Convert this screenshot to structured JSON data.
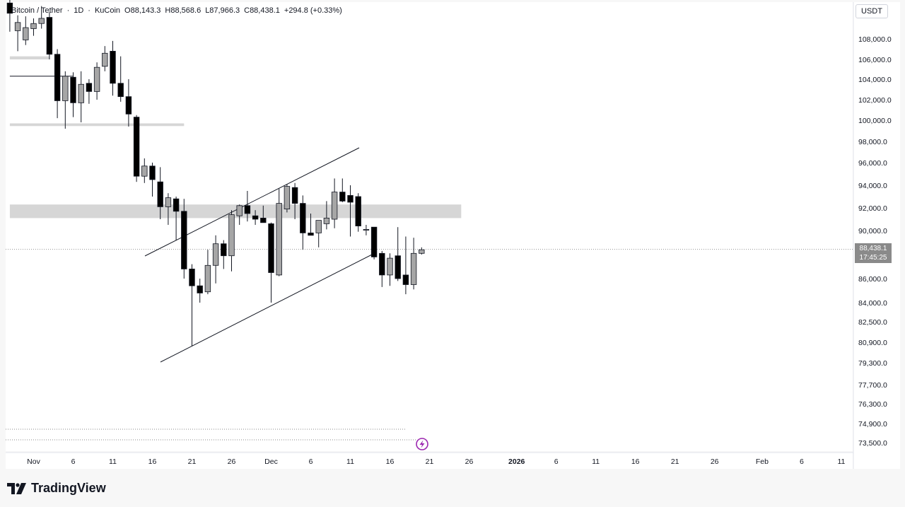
{
  "header": {
    "symbol": "Bitcoin / Tether",
    "interval": "1D",
    "exchange": "KuCoin",
    "open": "O88,143.3",
    "high": "H88,568.6",
    "low": "L87,966.3",
    "close": "C88,438.1",
    "change": "+294.8 (+0.33%)"
  },
  "currency_button": "USDT",
  "brand": "TradingView",
  "current_price": {
    "label": "88,438.1",
    "countdown": "17:45:25"
  },
  "colors": {
    "up": "#a6a6a6",
    "down": "#000000",
    "zone": "#d6d6d6",
    "accent_icon": "#9c27b0"
  },
  "chart_data": {
    "type": "candlestick",
    "y_axis_labels": [
      "108,000.0",
      "106,000.0",
      "104,000.0",
      "102,000.0",
      "100,000.0",
      "98,000.0",
      "96,000.0",
      "94,000.0",
      "92,000.0",
      "90,000.0",
      "86,000.0",
      "84,000.0",
      "82,500.0",
      "80,900.0",
      "79,300.0",
      "77,700.0",
      "76,300.0",
      "74,900.0",
      "73,500.0"
    ],
    "y_axis_values": [
      108000,
      106000,
      104000,
      102000,
      100000,
      98000,
      96000,
      94000,
      92000,
      90000,
      86000,
      84000,
      82500,
      80900,
      79300,
      77700,
      76300,
      74900,
      73500
    ],
    "x_axis_labels": [
      "Nov",
      "6",
      "11",
      "16",
      "21",
      "26",
      "Dec",
      "6",
      "11",
      "16",
      "21",
      "26",
      "2026",
      "6",
      "11",
      "16",
      "21",
      "26",
      "Feb",
      "6",
      "11"
    ],
    "x_axis_days": [
      0,
      5,
      10,
      15,
      20,
      25,
      30,
      35,
      40,
      45,
      50,
      55,
      61,
      66,
      71,
      76,
      81,
      86,
      92,
      97,
      102
    ],
    "candles": [
      {
        "d": -3,
        "o": 111500,
        "h": 111900,
        "l": 108700,
        "c": 110500
      },
      {
        "d": -2,
        "o": 108800,
        "h": 110300,
        "l": 106800,
        "c": 109600
      },
      {
        "d": -1,
        "o": 107900,
        "h": 110200,
        "l": 107400,
        "c": 109100
      },
      {
        "d": 0,
        "o": 109000,
        "h": 110000,
        "l": 108300,
        "c": 109500
      },
      {
        "d": 1,
        "o": 109500,
        "h": 111200,
        "l": 109000,
        "c": 110000
      },
      {
        "d": 2,
        "o": 110100,
        "h": 110600,
        "l": 106000,
        "c": 106500
      },
      {
        "d": 3,
        "o": 106500,
        "h": 107000,
        "l": 100200,
        "c": 101900
      },
      {
        "d": 4,
        "o": 101900,
        "h": 104800,
        "l": 99200,
        "c": 104300
      },
      {
        "d": 5,
        "o": 104200,
        "h": 104700,
        "l": 100300,
        "c": 101700
      },
      {
        "d": 6,
        "o": 101700,
        "h": 104800,
        "l": 99800,
        "c": 103500
      },
      {
        "d": 7,
        "o": 103600,
        "h": 104000,
        "l": 101600,
        "c": 102800
      },
      {
        "d": 8,
        "o": 102800,
        "h": 105700,
        "l": 102000,
        "c": 105200
      },
      {
        "d": 9,
        "o": 105300,
        "h": 107300,
        "l": 104800,
        "c": 106600
      },
      {
        "d": 10,
        "o": 106800,
        "h": 107800,
        "l": 102400,
        "c": 103600
      },
      {
        "d": 11,
        "o": 103600,
        "h": 106300,
        "l": 101800,
        "c": 102300
      },
      {
        "d": 12,
        "o": 102300,
        "h": 104000,
        "l": 99400,
        "c": 100600
      },
      {
        "d": 13,
        "o": 100300,
        "h": 100500,
        "l": 94300,
        "c": 94800
      },
      {
        "d": 14,
        "o": 94800,
        "h": 96400,
        "l": 94200,
        "c": 95700
      },
      {
        "d": 15,
        "o": 95700,
        "h": 96000,
        "l": 93000,
        "c": 94500
      },
      {
        "d": 16,
        "o": 94300,
        "h": 95600,
        "l": 91000,
        "c": 92100
      },
      {
        "d": 17,
        "o": 92100,
        "h": 93300,
        "l": 90500,
        "c": 92900
      },
      {
        "d": 18,
        "o": 92800,
        "h": 93000,
        "l": 89200,
        "c": 91700
      },
      {
        "d": 19,
        "o": 91700,
        "h": 92800,
        "l": 86000,
        "c": 86800
      },
      {
        "d": 20,
        "o": 86800,
        "h": 87200,
        "l": 80600,
        "c": 85400
      },
      {
        "d": 21,
        "o": 85400,
        "h": 86000,
        "l": 84000,
        "c": 84800
      },
      {
        "d": 22,
        "o": 84900,
        "h": 88400,
        "l": 84700,
        "c": 87100
      },
      {
        "d": 23,
        "o": 87100,
        "h": 89600,
        "l": 85600,
        "c": 88900
      },
      {
        "d": 24,
        "o": 88900,
        "h": 89200,
        "l": 86800,
        "c": 87900
      },
      {
        "d": 25,
        "o": 87900,
        "h": 91800,
        "l": 86600,
        "c": 91400
      },
      {
        "d": 26,
        "o": 91300,
        "h": 92300,
        "l": 90500,
        "c": 92200
      },
      {
        "d": 27,
        "o": 92200,
        "h": 93500,
        "l": 90800,
        "c": 91500
      },
      {
        "d": 28,
        "o": 91300,
        "h": 91800,
        "l": 90500,
        "c": 91000
      },
      {
        "d": 29,
        "o": 91100,
        "h": 92200,
        "l": 90800,
        "c": 90700
      },
      {
        "d": 30,
        "o": 90600,
        "h": 90700,
        "l": 84000,
        "c": 86500
      },
      {
        "d": 31,
        "o": 86300,
        "h": 93700,
        "l": 86200,
        "c": 92400
      },
      {
        "d": 32,
        "o": 91900,
        "h": 94100,
        "l": 91600,
        "c": 93900
      },
      {
        "d": 33,
        "o": 93800,
        "h": 94200,
        "l": 91000,
        "c": 92400
      },
      {
        "d": 34,
        "o": 92400,
        "h": 93100,
        "l": 88400,
        "c": 89800
      },
      {
        "d": 35,
        "o": 89800,
        "h": 91500,
        "l": 89600,
        "c": 89600
      },
      {
        "d": 36,
        "o": 89800,
        "h": 90900,
        "l": 88600,
        "c": 90900
      },
      {
        "d": 37,
        "o": 90600,
        "h": 92600,
        "l": 90100,
        "c": 91100
      },
      {
        "d": 38,
        "o": 91000,
        "h": 94600,
        "l": 90200,
        "c": 93400
      },
      {
        "d": 39,
        "o": 93400,
        "h": 94600,
        "l": 92500,
        "c": 92600
      },
      {
        "d": 40,
        "o": 93100,
        "h": 94000,
        "l": 89500,
        "c": 92500
      },
      {
        "d": 41,
        "o": 93000,
        "h": 93300,
        "l": 89900,
        "c": 90400
      },
      {
        "d": 42,
        "o": 90100,
        "h": 90500,
        "l": 89600,
        "c": 90100
      },
      {
        "d": 43,
        "o": 90300,
        "h": 90300,
        "l": 87600,
        "c": 87800
      },
      {
        "d": 44,
        "o": 88100,
        "h": 88300,
        "l": 85300,
        "c": 86300
      },
      {
        "d": 45,
        "o": 86300,
        "h": 88100,
        "l": 85400,
        "c": 87700
      },
      {
        "d": 46,
        "o": 87900,
        "h": 90300,
        "l": 85800,
        "c": 86000
      },
      {
        "d": 47,
        "o": 86300,
        "h": 89500,
        "l": 84700,
        "c": 85500
      },
      {
        "d": 48,
        "o": 85500,
        "h": 89400,
        "l": 85100,
        "c": 88100
      },
      {
        "d": 49,
        "o": 88100,
        "h": 88600,
        "l": 88000,
        "c": 88400
      }
    ],
    "zones": [
      {
        "from_day": -3,
        "to_day": 54,
        "low": 91100,
        "high": 92300
      },
      {
        "from_day": -3,
        "to_day": 19,
        "low": 99450,
        "high": 99700
      },
      {
        "from_day": -3,
        "to_day": 2,
        "low": 106000,
        "high": 106300
      }
    ],
    "levels": [
      {
        "from_day": -3,
        "to_day": 5,
        "value": 104300
      }
    ],
    "trendlines": [
      {
        "d1": 17,
        "p1": 88300,
        "d2": 45,
        "p2": 97500
      },
      {
        "d1": 19,
        "p1": 79000,
        "d2": 47,
        "p2": 88100
      },
      {
        "d1": 20,
        "p1": 80600,
        "d2": 23,
        "p2": 81700
      }
    ],
    "last_price": 88438.1
  }
}
